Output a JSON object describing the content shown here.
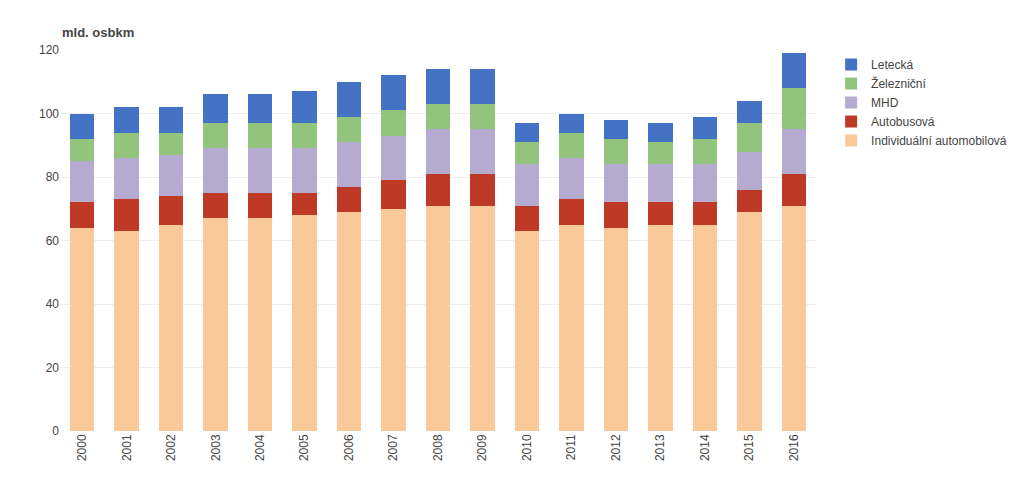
{
  "chart_data": {
    "type": "bar",
    "stacked": true,
    "ylabel": "mld. osbkm",
    "categories": [
      "2000",
      "2001",
      "2002",
      "2003",
      "2004",
      "2005",
      "2006",
      "2007",
      "2008",
      "2009",
      "2010",
      "2011",
      "2012",
      "2013",
      "2014",
      "2015",
      "2016"
    ],
    "series": [
      {
        "name": "Individuální automobilová",
        "color": "#F9C99A",
        "values": [
          64,
          63,
          65,
          67,
          67,
          68,
          69,
          70,
          71,
          71,
          63,
          65,
          64,
          65,
          65,
          69,
          71
        ]
      },
      {
        "name": "Autobusová",
        "color": "#BE3A26",
        "values": [
          8,
          10,
          9,
          8,
          8,
          7,
          8,
          9,
          10,
          10,
          8,
          8,
          8,
          7,
          7,
          7,
          10
        ]
      },
      {
        "name": "MHD",
        "color": "#B5AACF",
        "values": [
          13,
          13,
          13,
          14,
          14,
          14,
          14,
          14,
          14,
          14,
          13,
          13,
          12,
          12,
          12,
          12,
          14
        ]
      },
      {
        "name": "Železniční",
        "color": "#93C47D",
        "values": [
          7,
          8,
          7,
          8,
          8,
          8,
          8,
          8,
          8,
          8,
          7,
          8,
          8,
          7,
          8,
          9,
          13
        ]
      },
      {
        "name": "Letecká",
        "color": "#4472C4",
        "values": [
          8,
          8,
          8,
          9,
          9,
          10,
          11,
          11,
          11,
          11,
          6,
          6,
          6,
          6,
          7,
          7,
          11
        ]
      }
    ],
    "ylim": [
      0,
      120
    ],
    "yticks": [
      0,
      20,
      40,
      60,
      80,
      100,
      120
    ],
    "grid": true,
    "legend": "right"
  }
}
